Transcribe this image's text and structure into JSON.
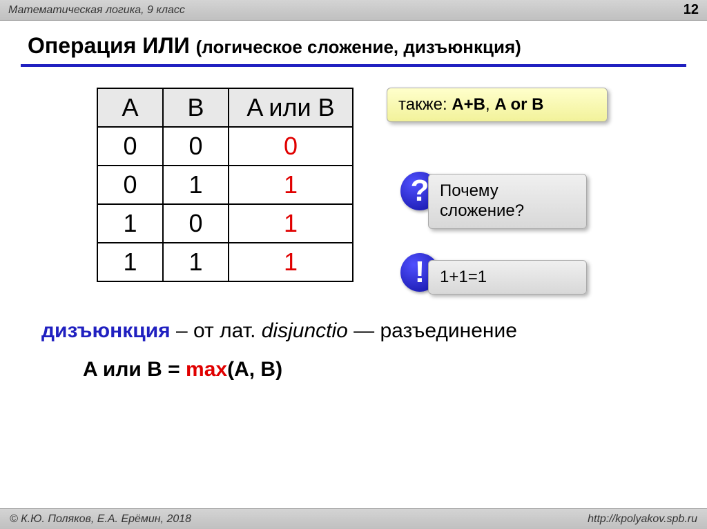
{
  "header": {
    "title": "Математическая логика, 9 класс",
    "page_number": "12"
  },
  "title": {
    "main": "Операция ИЛИ",
    "sub": "(логическое сложение, дизъюнкция)"
  },
  "table": {
    "headers": {
      "a": "A",
      "b": "B",
      "r": "A или B"
    },
    "rows": [
      {
        "a": "0",
        "b": "0",
        "r": "0"
      },
      {
        "a": "0",
        "b": "1",
        "r": "1"
      },
      {
        "a": "1",
        "b": "0",
        "r": "1"
      },
      {
        "a": "1",
        "b": "1",
        "r": "1"
      }
    ],
    "header_bg": "#e8e8e8",
    "result_color": "#e00000",
    "border_color": "#000000"
  },
  "callouts": {
    "also_prefix": "также: ",
    "also_bold": "A+B",
    "also_mid": ", ",
    "also_bold2": "A or B",
    "why": "Почему сложение?",
    "answer": "1+1=1"
  },
  "badges": {
    "q": "?",
    "a": "!"
  },
  "definition": {
    "term": "дизъюнкция",
    "mid1": " – от лат. ",
    "latin": "disjunctio",
    "mid2": " — разъединение"
  },
  "formula": {
    "lhs": "A или B = ",
    "fn": "max",
    "args": "(A, B)"
  },
  "footer": {
    "copyright": "© К.Ю. Поляков, Е.А. Ерёмин, 2018",
    "url": "http://kpolyakov.spb.ru"
  },
  "colors": {
    "underline": "#2020c0",
    "term_blue": "#2020c0",
    "fn_red": "#e00000",
    "badge_bg": "#1010a0",
    "callout_yellow": "#f8f8d0",
    "callout_gray": "#e8e8e8"
  }
}
